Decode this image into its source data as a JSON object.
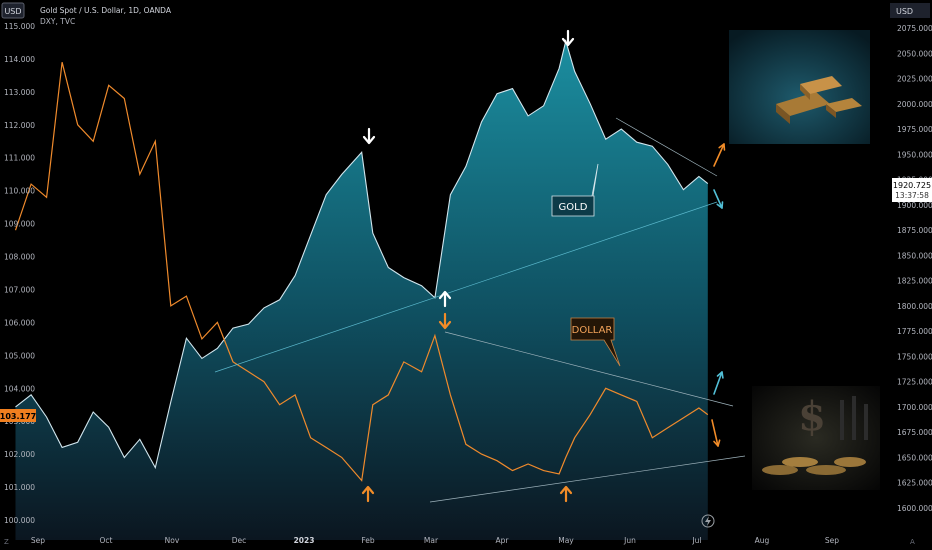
{
  "header": {
    "title": "Gold Spot / U.S. Dollar, 1D, OANDA",
    "subtitle": "DXY, TVC",
    "left_currency": "USD",
    "right_currency": "USD"
  },
  "price_badges": {
    "dxy": "103.177",
    "gold_price": "1920.725",
    "gold_timer": "13:37:58"
  },
  "annotations": {
    "gold_label": "GOLD",
    "dollar_label": "DOLLAR"
  },
  "colors": {
    "gold_line": "#d1e6ee",
    "gold_fill_top": "#1b8ea0",
    "gold_fill_bottom": "#0b1620",
    "dxy_line": "#ef8a2c",
    "arrow_white": "#ffffff",
    "arrow_orange": "#f28c28",
    "arrow_cyan": "#52bfd6"
  },
  "icons": [
    "gold-bars-thumbnail",
    "dollar-coins-thumbnail",
    "lightning-icon"
  ],
  "chart_data": {
    "type": "area",
    "x_tick_labels": [
      "Sep",
      "Oct",
      "Nov",
      "Dec",
      "2023",
      "Feb",
      "Mar",
      "Apr",
      "May",
      "Jun",
      "Jul",
      "Aug",
      "Sep"
    ],
    "left_axis": {
      "label": "USD",
      "ticks": [
        "115.000",
        "114.000",
        "113.000",
        "112.000",
        "111.000",
        "110.000",
        "109.000",
        "108.000",
        "107.000",
        "106.000",
        "105.000",
        "104.000",
        "103.000",
        "102.000",
        "101.000",
        "100.000"
      ],
      "range": [
        99.8,
        115.4
      ]
    },
    "right_axis": {
      "label": "USD",
      "ticks": [
        "2075.000",
        "2050.000",
        "2025.000",
        "2000.000",
        "1975.000",
        "1950.000",
        "1925.000",
        "1900.000",
        "1875.000",
        "1850.000",
        "1825.000",
        "1800.000",
        "1775.000",
        "1750.000",
        "1725.000",
        "1700.000",
        "1675.000",
        "1650.000",
        "1625.000",
        "1600.000"
      ],
      "range": [
        1595,
        2093
      ]
    },
    "series": [
      {
        "name": "Gold Spot / U.S. Dollar, 1D, OANDA",
        "axis": "right",
        "style": "area",
        "x": [
          "2022-08-29",
          "2022-09-05",
          "2022-09-12",
          "2022-09-19",
          "2022-09-26",
          "2022-10-03",
          "2022-10-10",
          "2022-10-17",
          "2022-10-24",
          "2022-10-31",
          "2022-11-07",
          "2022-11-14",
          "2022-11-21",
          "2022-11-28",
          "2022-12-05",
          "2022-12-12",
          "2022-12-19",
          "2022-12-26",
          "2023-01-02",
          "2023-01-09",
          "2023-01-16",
          "2023-01-23",
          "2023-02-01",
          "2023-02-06",
          "2023-02-13",
          "2023-02-20",
          "2023-02-28",
          "2023-03-06",
          "2023-03-13",
          "2023-03-20",
          "2023-03-27",
          "2023-04-03",
          "2023-04-10",
          "2023-04-17",
          "2023-04-24",
          "2023-05-01",
          "2023-05-04",
          "2023-05-08",
          "2023-05-15",
          "2023-05-22",
          "2023-05-29",
          "2023-06-05",
          "2023-06-12",
          "2023-06-19",
          "2023-06-26",
          "2023-07-03",
          "2023-07-07"
        ],
        "values": [
          1700,
          1712,
          1690,
          1660,
          1665,
          1695,
          1680,
          1650,
          1668,
          1640,
          1705,
          1768,
          1748,
          1758,
          1778,
          1782,
          1798,
          1806,
          1830,
          1870,
          1910,
          1930,
          1952,
          1872,
          1838,
          1828,
          1820,
          1808,
          1910,
          1938,
          1982,
          2010,
          2015,
          1988,
          1998,
          2035,
          2062,
          2032,
          2000,
          1965,
          1975,
          1962,
          1958,
          1940,
          1915,
          1928,
          1921
        ]
      },
      {
        "name": "DXY, TVC",
        "axis": "left",
        "style": "line",
        "x": [
          "2022-08-29",
          "2022-09-05",
          "2022-09-12",
          "2022-09-19",
          "2022-09-26",
          "2022-10-03",
          "2022-10-10",
          "2022-10-17",
          "2022-10-24",
          "2022-10-31",
          "2022-11-07",
          "2022-11-14",
          "2022-11-21",
          "2022-11-28",
          "2022-12-05",
          "2022-12-12",
          "2022-12-19",
          "2022-12-26",
          "2023-01-02",
          "2023-01-09",
          "2023-01-16",
          "2023-01-23",
          "2023-02-01",
          "2023-02-06",
          "2023-02-13",
          "2023-02-20",
          "2023-02-28",
          "2023-03-06",
          "2023-03-13",
          "2023-03-20",
          "2023-03-27",
          "2023-04-03",
          "2023-04-10",
          "2023-04-17",
          "2023-04-24",
          "2023-05-01",
          "2023-05-04",
          "2023-05-08",
          "2023-05-15",
          "2023-05-22",
          "2023-05-29",
          "2023-06-05",
          "2023-06-12",
          "2023-06-19",
          "2023-06-26",
          "2023-07-03",
          "2023-07-07"
        ],
        "values": [
          108.8,
          110.2,
          109.8,
          113.9,
          112.0,
          111.5,
          113.2,
          112.8,
          110.5,
          111.5,
          106.5,
          106.8,
          105.5,
          106.0,
          104.8,
          104.5,
          104.2,
          103.5,
          103.8,
          102.5,
          102.2,
          101.9,
          101.2,
          103.5,
          103.8,
          104.8,
          104.5,
          105.6,
          103.8,
          102.3,
          102.0,
          101.8,
          101.5,
          101.7,
          101.5,
          101.4,
          101.9,
          102.5,
          103.2,
          104.0,
          103.8,
          103.6,
          102.5,
          102.8,
          103.1,
          103.4,
          103.2
        ]
      }
    ],
    "grid": false,
    "legend": "top-left"
  }
}
